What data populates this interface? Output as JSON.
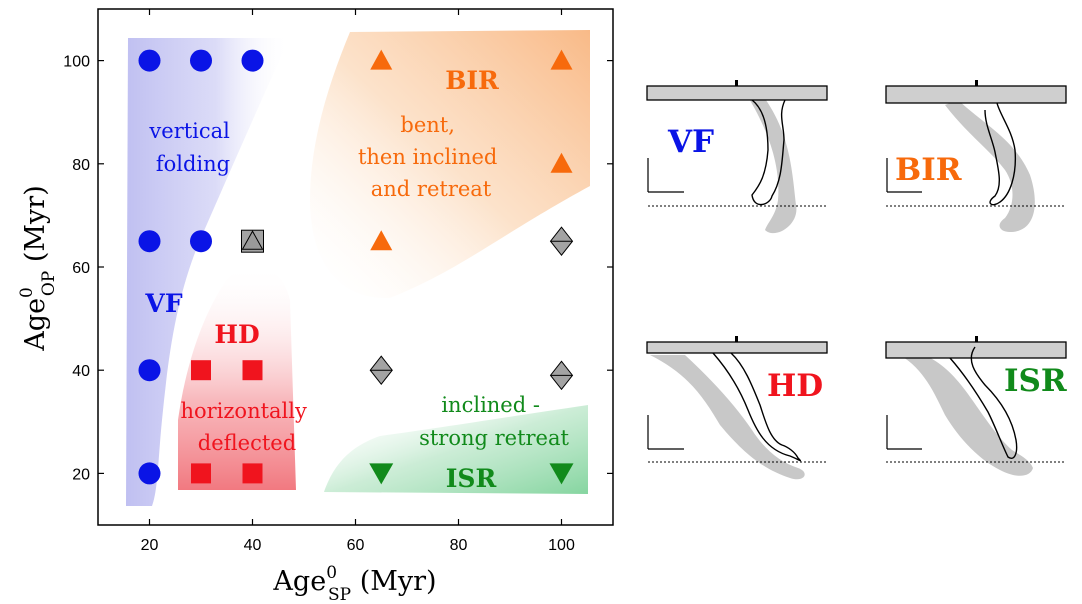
{
  "chart_data": {
    "type": "scatter",
    "xlabel": {
      "main": "Age",
      "sup": "0",
      "sub": "SP",
      "unit": " (Myr)"
    },
    "ylabel": {
      "main": "Age",
      "sup": "0",
      "sub": "OP",
      "unit": " (Myr)"
    },
    "xlim": [
      10,
      110
    ],
    "ylim": [
      10,
      110
    ],
    "xticks": [
      20,
      40,
      60,
      80,
      100
    ],
    "yticks": [
      20,
      40,
      60,
      80,
      100
    ],
    "grid": false,
    "series": [
      {
        "marker": "circle",
        "color": "#0a14e6",
        "points": [
          [
            20,
            100
          ],
          [
            30,
            100
          ],
          [
            40,
            100
          ],
          [
            20,
            65
          ],
          [
            30,
            65
          ],
          [
            20,
            40
          ],
          [
            20,
            20
          ]
        ]
      },
      {
        "marker": "triangle-up",
        "color": "#f76a0c",
        "points": [
          [
            65,
            100
          ],
          [
            100,
            100
          ],
          [
            100,
            80
          ],
          [
            65,
            65
          ]
        ]
      },
      {
        "marker": "square",
        "color": "#f0141e",
        "points": [
          [
            30,
            40
          ],
          [
            40,
            40
          ],
          [
            30,
            20
          ],
          [
            40,
            20
          ]
        ]
      },
      {
        "marker": "triangle-down",
        "color": "#118a1b",
        "points": [
          [
            65,
            20
          ],
          [
            100,
            20
          ]
        ]
      },
      {
        "marker": "diamond",
        "color": "#a3a3a3",
        "points": [
          [
            65,
            40
          ],
          [
            100,
            39
          ],
          [
            100,
            65
          ]
        ]
      },
      {
        "marker": "square-triangle",
        "color": "#a3a3a3",
        "points": [
          [
            40,
            65
          ]
        ]
      }
    ],
    "region_labels": {
      "vf_desc": [
        "vertical",
        "folding"
      ],
      "vf_code": "VF",
      "bir_code": "BIR",
      "bir_desc": [
        "bent,",
        "then inclined",
        "and retreat"
      ],
      "hd_code": "HD",
      "hd_desc": [
        "horizontally",
        "deflected"
      ],
      "isr_desc": [
        "inclined -",
        "strong retreat"
      ],
      "isr_code": "ISR"
    },
    "colors": {
      "vf": "#0a14e6",
      "bir": "#f76a0c",
      "hd": "#f0141e",
      "isr": "#118a1b",
      "ambiguous": "#a3a3a3"
    }
  },
  "panels": [
    {
      "code": "VF",
      "color": "#0a14e6"
    },
    {
      "code": "BIR",
      "color": "#f76a0c"
    },
    {
      "code": "HD",
      "color": "#f0141e"
    },
    {
      "code": "ISR",
      "color": "#118a1b"
    }
  ]
}
